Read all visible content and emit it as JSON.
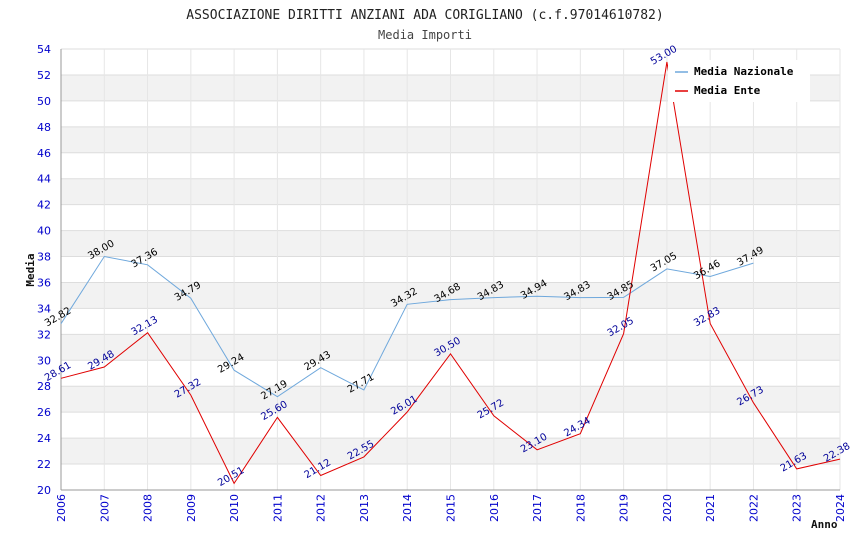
{
  "chart_data": {
    "type": "line",
    "title": "ASSOCIAZIONE DIRITTI ANZIANI ADA CORIGLIANO (c.f.97014610782)",
    "subtitle": "Media Importi",
    "xlabel": "Anno",
    "ylabel": "Media",
    "ylim": [
      20,
      54
    ],
    "y_ticks": [
      20,
      22,
      24,
      26,
      28,
      30,
      32,
      34,
      36,
      38,
      40,
      42,
      44,
      46,
      48,
      50,
      52,
      54
    ],
    "categories": [
      "2006",
      "2007",
      "2008",
      "2009",
      "2010",
      "2011",
      "2012",
      "2013",
      "2014",
      "2015",
      "2016",
      "2017",
      "2018",
      "2019",
      "2020",
      "2021",
      "2022",
      "2023",
      "2024"
    ],
    "legend_position": "top-right",
    "series": [
      {
        "name": "Media Nazionale",
        "color": "#6fa8dc",
        "values": [
          32.82,
          38.0,
          37.36,
          34.79,
          29.24,
          27.19,
          29.43,
          27.71,
          34.32,
          34.68,
          34.83,
          34.94,
          34.83,
          34.85,
          37.05,
          36.46,
          37.49,
          null,
          null
        ],
        "labels": [
          "32.82",
          "38.00",
          "37.36",
          "34.79",
          "29.24",
          "27.19",
          "29.43",
          "27.71",
          "34.32",
          "34.68",
          "34.83",
          "34.94",
          "34.83",
          "34.85",
          "37.05",
          "36.46",
          "37.49",
          null,
          null
        ]
      },
      {
        "name": "Media Ente",
        "color": "#e00000",
        "values": [
          28.61,
          29.48,
          32.13,
          27.32,
          20.51,
          25.6,
          21.12,
          22.55,
          26.01,
          30.5,
          25.72,
          23.1,
          24.34,
          32.05,
          53.0,
          32.83,
          26.73,
          21.63,
          22.38
        ],
        "labels": [
          "28.61",
          "29.48",
          "32.13",
          "27.32",
          "20.51",
          "25.60",
          "21.12",
          "22.55",
          "26.01",
          "30.50",
          "25.72",
          "23.10",
          "24.34",
          "32.05",
          "53.00",
          "32.83",
          "26.73",
          "21.63",
          "22.38"
        ]
      }
    ]
  }
}
